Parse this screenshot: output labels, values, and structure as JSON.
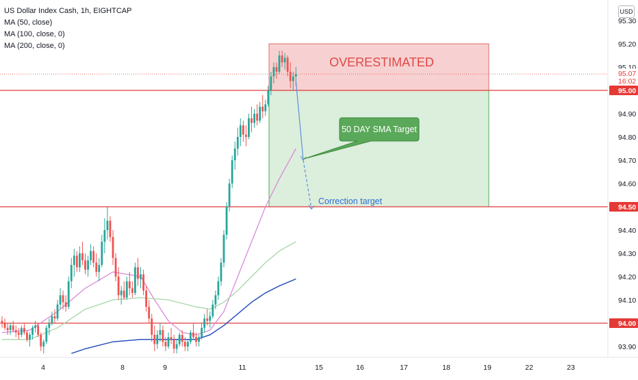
{
  "header": {
    "symbol_line": "US Dollar Index Cash, 1h, EIGHTCAP",
    "indicators": [
      "MA (50, close)",
      "MA (100, close, 0)",
      "MA (200, close, 0)"
    ],
    "currency_button": "USD"
  },
  "price_axis": {
    "ticks": [
      "95.30",
      "95.20",
      "95.10",
      "95.00",
      "94.90",
      "94.80",
      "94.70",
      "94.60",
      "94.50",
      "94.40",
      "94.30",
      "94.20",
      "94.10",
      "94.00",
      "93.90"
    ],
    "current_price": "95.07",
    "countdown": "16:02"
  },
  "time_axis": {
    "ticks": [
      "4",
      "8",
      "9",
      "11",
      "15",
      "16",
      "17",
      "18",
      "19",
      "22",
      "23"
    ]
  },
  "annotations": {
    "overestimated": "OVERESTIMATED",
    "sma_callout": "50 DAY SMA Target",
    "correction": "Correction target"
  },
  "colors": {
    "up": "#26a69a",
    "down": "#ef5350",
    "level_line": "#e03a3a",
    "ma50": "#d98ad9",
    "ma100": "#a5d6a7",
    "ma200": "#2a52be",
    "red_zone": "#f6c9c9",
    "green_zone": "#d6ebd6",
    "callout": "#5aa85a",
    "arrow": "#5b8fd9"
  },
  "chart_data": {
    "type": "candlestick",
    "title": "US Dollar Index Cash, 1h, EIGHTCAP",
    "xlabel": "",
    "ylabel": "",
    "ylim": [
      93.86,
      95.34
    ],
    "x_tick_labels": [
      "4",
      "8",
      "9",
      "11",
      "15",
      "16",
      "17",
      "18",
      "19",
      "22",
      "23"
    ],
    "horizontal_levels": [
      95.0,
      94.5,
      94.0
    ],
    "zones": [
      {
        "label": "OVERESTIMATED",
        "from": 95.0,
        "to": 95.2,
        "color": "red"
      },
      {
        "label": "",
        "from": 94.5,
        "to": 95.0,
        "color": "green"
      }
    ],
    "candles": [
      [
        94.01,
        94.03,
        93.98,
        94.0
      ],
      [
        94.0,
        94.02,
        93.97,
        93.98
      ],
      [
        93.98,
        94.0,
        93.95,
        93.97
      ],
      [
        93.97,
        94.0,
        93.95,
        93.99
      ],
      [
        93.99,
        94.01,
        93.96,
        93.97
      ],
      [
        93.97,
        93.99,
        93.94,
        93.96
      ],
      [
        93.96,
        93.98,
        93.93,
        93.95
      ],
      [
        93.95,
        93.99,
        93.94,
        93.98
      ],
      [
        93.98,
        94.0,
        93.95,
        93.96
      ],
      [
        93.96,
        93.97,
        93.92,
        93.93
      ],
      [
        93.93,
        93.96,
        93.9,
        93.95
      ],
      [
        93.95,
        93.99,
        93.93,
        93.98
      ],
      [
        93.98,
        94.01,
        93.96,
        93.99
      ],
      [
        93.99,
        94.0,
        93.94,
        93.95
      ],
      [
        93.95,
        93.96,
        93.88,
        93.9
      ],
      [
        93.9,
        93.93,
        93.87,
        93.92
      ],
      [
        93.92,
        93.99,
        93.91,
        93.98
      ],
      [
        93.98,
        94.02,
        93.95,
        94.0
      ],
      [
        94.0,
        94.05,
        93.99,
        94.03
      ],
      [
        94.03,
        94.06,
        94.0,
        94.02
      ],
      [
        94.02,
        94.1,
        94.01,
        94.08
      ],
      [
        94.08,
        94.15,
        94.06,
        94.12
      ],
      [
        94.12,
        94.14,
        94.06,
        94.09
      ],
      [
        94.09,
        94.12,
        94.05,
        94.07
      ],
      [
        94.07,
        94.2,
        94.06,
        94.18
      ],
      [
        94.18,
        94.28,
        94.15,
        94.25
      ],
      [
        94.25,
        94.32,
        94.2,
        94.29
      ],
      [
        94.29,
        94.31,
        94.22,
        94.24
      ],
      [
        94.24,
        94.33,
        94.22,
        94.3
      ],
      [
        94.3,
        94.35,
        94.25,
        94.27
      ],
      [
        94.27,
        94.3,
        94.21,
        94.23
      ],
      [
        94.23,
        94.29,
        94.2,
        94.27
      ],
      [
        94.27,
        94.34,
        94.25,
        94.31
      ],
      [
        94.31,
        94.33,
        94.24,
        94.26
      ],
      [
        94.26,
        94.3,
        94.2,
        94.22
      ],
      [
        94.22,
        94.28,
        94.18,
        94.25
      ],
      [
        94.25,
        94.38,
        94.24,
        94.35
      ],
      [
        94.35,
        94.45,
        94.3,
        94.4
      ],
      [
        94.4,
        94.5,
        94.36,
        94.44
      ],
      [
        94.44,
        94.46,
        94.35,
        94.37
      ],
      [
        94.37,
        94.4,
        94.25,
        94.28
      ],
      [
        94.28,
        94.3,
        94.18,
        94.2
      ],
      [
        94.2,
        94.24,
        94.1,
        94.12
      ],
      [
        94.12,
        94.16,
        94.08,
        94.14
      ],
      [
        94.14,
        94.18,
        94.1,
        94.11
      ],
      [
        94.11,
        94.2,
        94.1,
        94.18
      ],
      [
        94.18,
        94.22,
        94.12,
        94.15
      ],
      [
        94.15,
        94.18,
        94.11,
        94.13
      ],
      [
        94.13,
        94.26,
        94.12,
        94.24
      ],
      [
        94.24,
        94.28,
        94.16,
        94.19
      ],
      [
        94.19,
        94.24,
        94.15,
        94.21
      ],
      [
        94.21,
        94.23,
        94.12,
        94.14
      ],
      [
        94.14,
        94.16,
        94.05,
        94.07
      ],
      [
        94.07,
        94.1,
        94.0,
        94.02
      ],
      [
        94.02,
        94.04,
        93.92,
        93.95
      ],
      [
        93.95,
        93.99,
        93.88,
        93.91
      ],
      [
        93.91,
        93.97,
        93.89,
        93.95
      ],
      [
        93.95,
        94.0,
        93.92,
        93.97
      ],
      [
        93.97,
        93.99,
        93.9,
        93.92
      ],
      [
        93.92,
        93.94,
        93.88,
        93.9
      ],
      [
        93.9,
        93.96,
        93.89,
        93.94
      ],
      [
        93.94,
        93.98,
        93.91,
        93.93
      ],
      [
        93.93,
        93.95,
        93.87,
        93.89
      ],
      [
        93.89,
        93.93,
        93.87,
        93.91
      ],
      [
        93.91,
        93.96,
        93.9,
        93.95
      ],
      [
        93.95,
        93.97,
        93.9,
        93.92
      ],
      [
        93.92,
        93.94,
        93.88,
        93.9
      ],
      [
        93.9,
        93.93,
        93.88,
        93.92
      ],
      [
        93.92,
        93.97,
        93.91,
        93.96
      ],
      [
        93.96,
        94.0,
        93.93,
        93.94
      ],
      [
        93.94,
        93.96,
        93.9,
        93.92
      ],
      [
        93.92,
        93.95,
        93.9,
        93.94
      ],
      [
        93.94,
        94.0,
        93.93,
        93.98
      ],
      [
        93.98,
        94.04,
        93.96,
        94.02
      ],
      [
        94.02,
        94.06,
        93.99,
        94.01
      ],
      [
        94.01,
        94.05,
        93.98,
        94.03
      ],
      [
        94.03,
        94.1,
        94.02,
        94.08
      ],
      [
        94.08,
        94.14,
        94.06,
        94.12
      ],
      [
        94.12,
        94.2,
        94.1,
        94.18
      ],
      [
        94.18,
        94.28,
        94.16,
        94.26
      ],
      [
        94.26,
        94.4,
        94.24,
        94.38
      ],
      [
        94.38,
        94.52,
        94.36,
        94.5
      ],
      [
        94.5,
        94.62,
        94.48,
        94.6
      ],
      [
        94.6,
        94.72,
        94.58,
        94.7
      ],
      [
        94.7,
        94.78,
        94.66,
        94.75
      ],
      [
        94.75,
        94.84,
        94.72,
        94.8
      ],
      [
        94.8,
        94.88,
        94.76,
        94.85
      ],
      [
        94.85,
        94.87,
        94.78,
        94.81
      ],
      [
        94.81,
        94.85,
        94.76,
        94.8
      ],
      [
        94.8,
        94.9,
        94.79,
        94.88
      ],
      [
        94.88,
        94.93,
        94.82,
        94.86
      ],
      [
        94.86,
        94.92,
        94.84,
        94.9
      ],
      [
        94.9,
        94.94,
        94.85,
        94.87
      ],
      [
        94.87,
        94.95,
        94.86,
        94.93
      ],
      [
        94.93,
        94.98,
        94.88,
        94.91
      ],
      [
        94.91,
        94.96,
        94.89,
        94.94
      ],
      [
        94.94,
        95.02,
        94.93,
        95.0
      ],
      [
        95.0,
        95.08,
        94.98,
        95.06
      ],
      [
        95.06,
        95.12,
        95.03,
        95.1
      ],
      [
        95.1,
        95.12,
        95.05,
        95.08
      ],
      [
        95.08,
        95.17,
        95.07,
        95.15
      ],
      [
        95.15,
        95.17,
        95.1,
        95.12
      ],
      [
        95.12,
        95.16,
        95.09,
        95.14
      ],
      [
        95.14,
        95.15,
        95.06,
        95.08
      ],
      [
        95.08,
        95.12,
        95.01,
        95.04
      ],
      [
        95.04,
        95.08,
        95.0,
        95.06
      ],
      [
        95.06,
        95.1,
        95.02,
        95.07
      ]
    ],
    "series": [
      {
        "name": "MA (50, close)",
        "x": [
          0,
          10,
          20,
          30,
          40,
          50,
          55,
          60,
          65,
          70,
          75,
          80,
          85,
          90,
          95,
          100,
          106
        ],
        "y": [
          93.96,
          93.97,
          94.05,
          94.15,
          94.22,
          94.2,
          94.1,
          94.01,
          93.96,
          93.95,
          93.97,
          94.05,
          94.2,
          94.35,
          94.5,
          94.62,
          94.75
        ]
      },
      {
        "name": "MA (100, close, 0)",
        "x": [
          0,
          10,
          20,
          30,
          40,
          50,
          60,
          70,
          75,
          80,
          85,
          90,
          95,
          100,
          106
        ],
        "y": [
          93.93,
          93.93,
          93.98,
          94.06,
          94.1,
          94.11,
          94.1,
          94.07,
          94.06,
          94.09,
          94.14,
          94.2,
          94.26,
          94.31,
          94.35
        ]
      },
      {
        "name": "MA (200, close, 0)",
        "x": [
          25,
          30,
          40,
          50,
          60,
          70,
          75,
          80,
          85,
          90,
          95,
          100,
          106
        ],
        "y": [
          93.87,
          93.89,
          93.92,
          93.93,
          93.93,
          93.93,
          93.95,
          93.99,
          94.04,
          94.09,
          94.13,
          94.16,
          94.19
        ]
      }
    ]
  }
}
